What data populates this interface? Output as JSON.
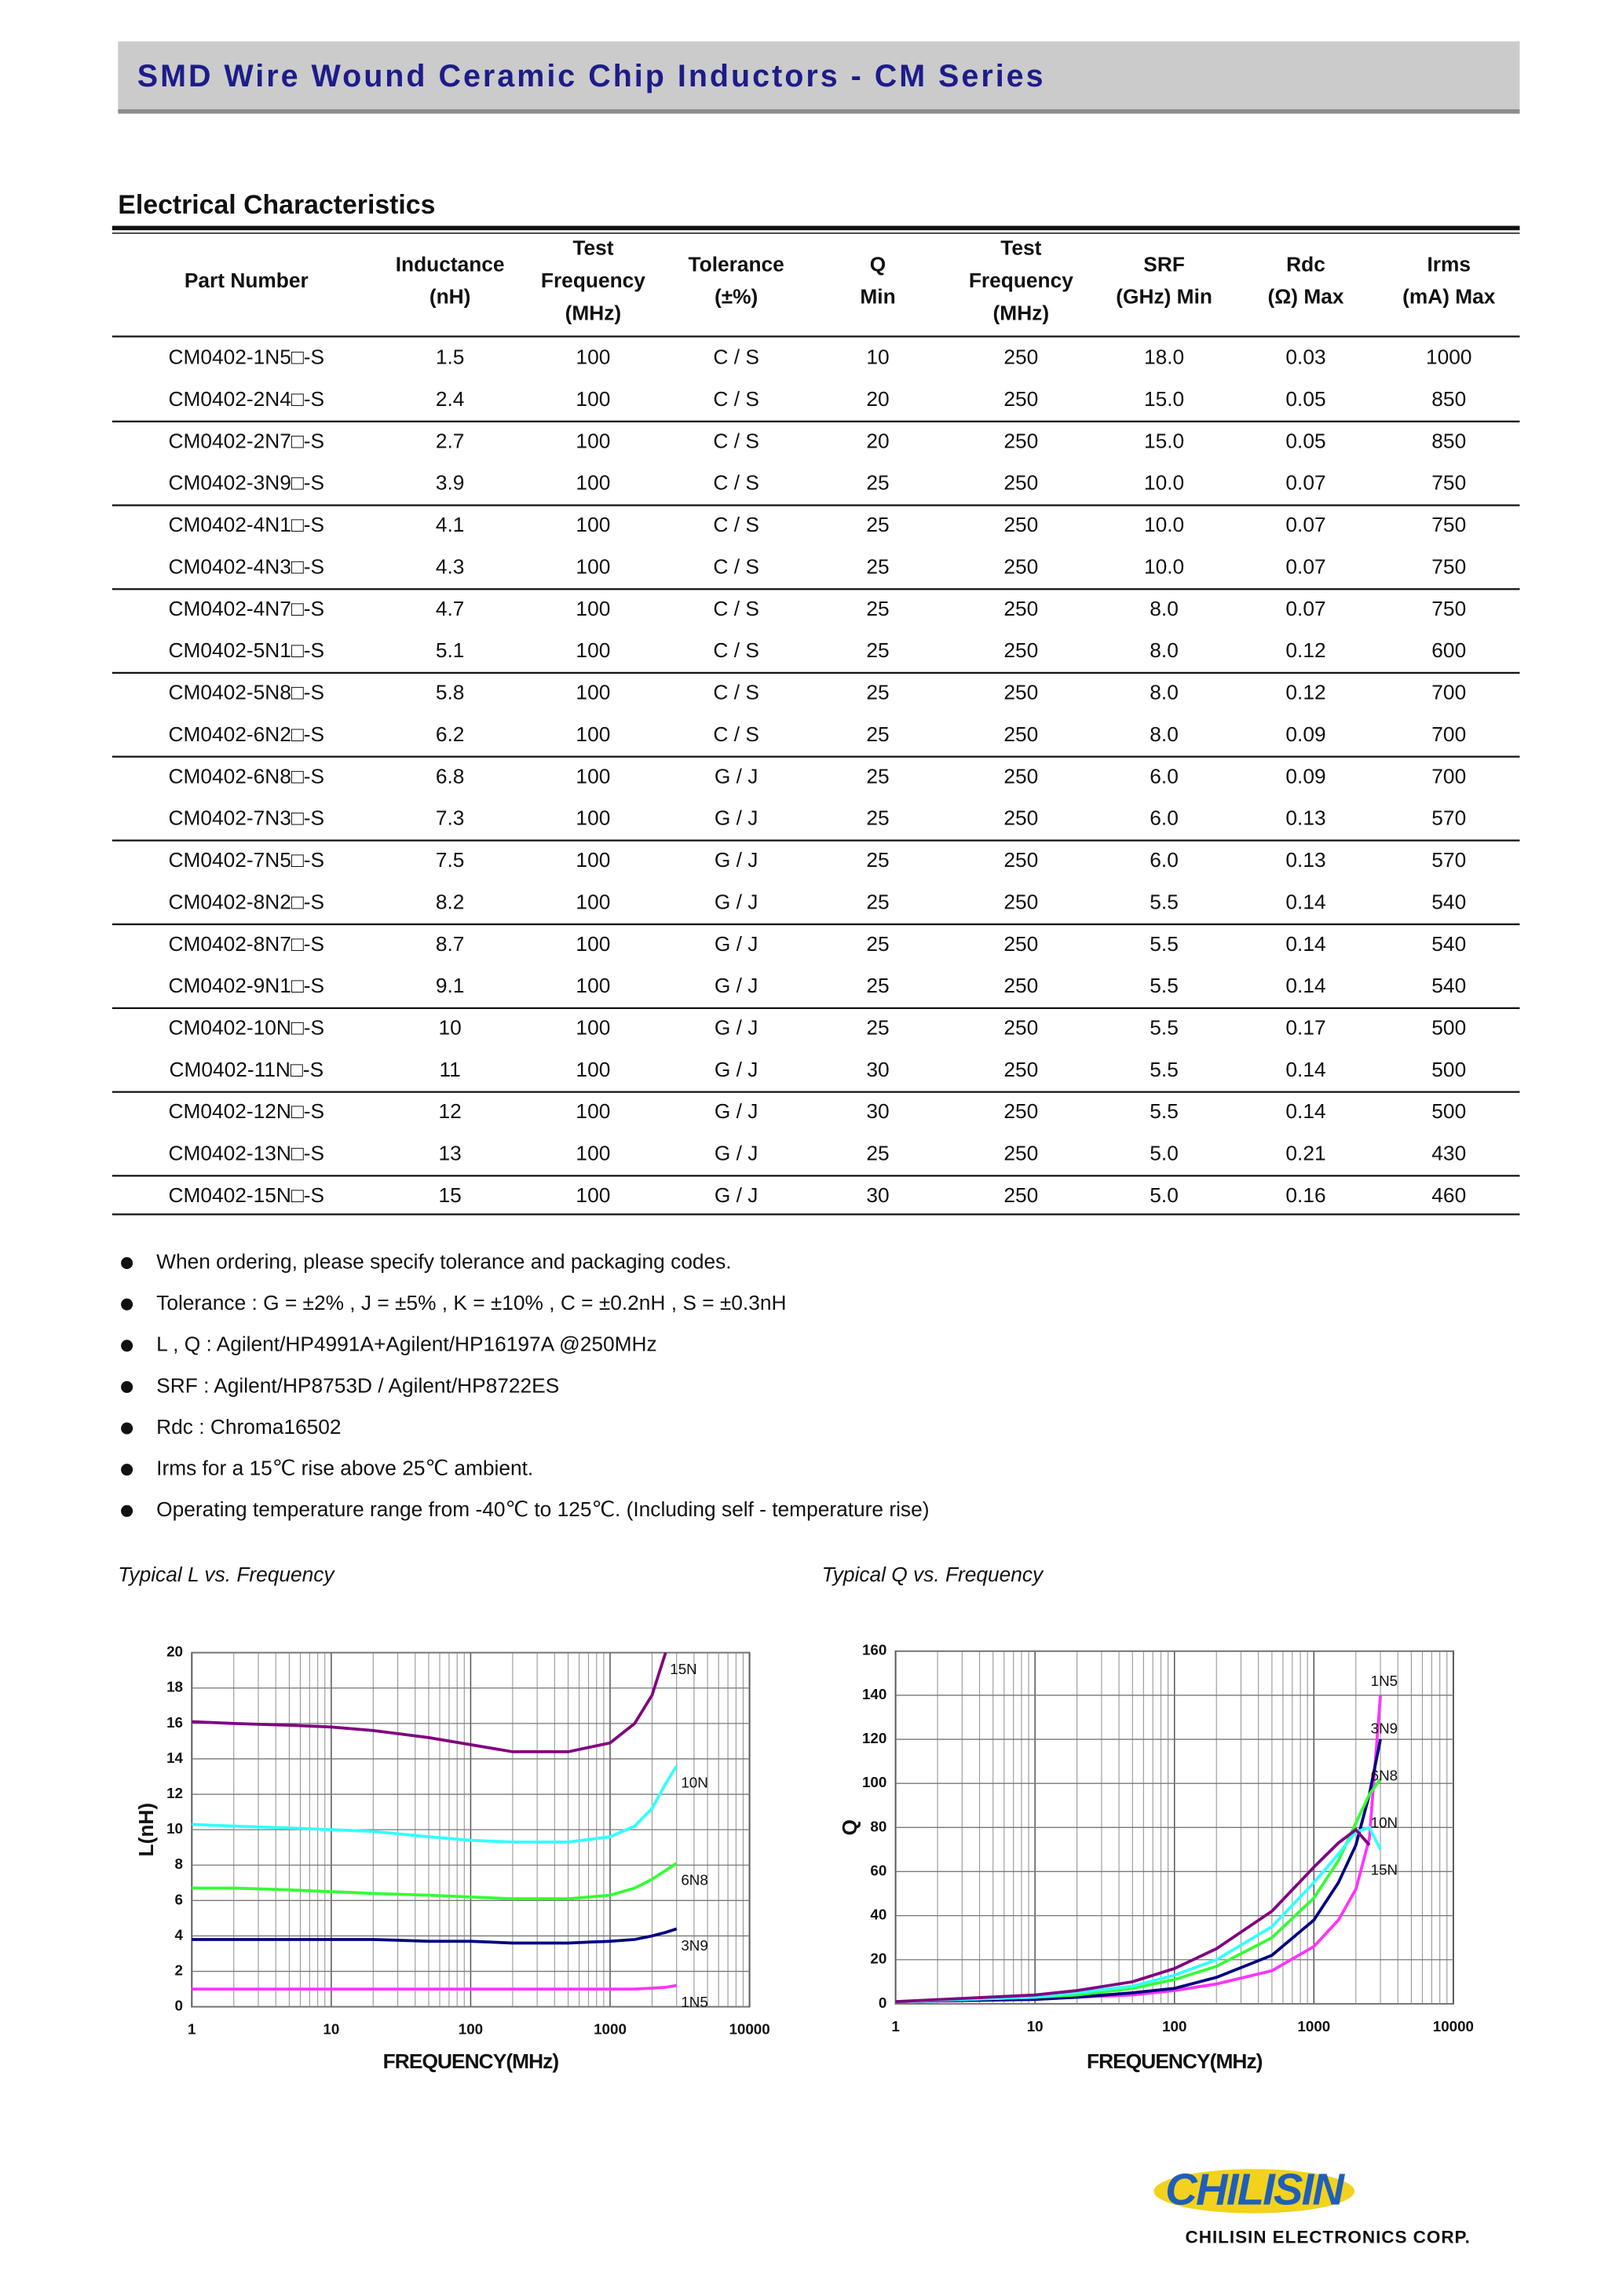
{
  "header": {
    "title": "SMD Wire Wound Ceramic Chip Inductors - CM Series"
  },
  "section_title": "Electrical Characteristics",
  "table": {
    "headers": [
      [
        "Part Number"
      ],
      [
        "Inductance",
        "(nH)"
      ],
      [
        "Test",
        "Frequency",
        "(MHz)"
      ],
      [
        "Tolerance",
        "(±%)"
      ],
      [
        "Q",
        "Min"
      ],
      [
        "Test",
        "Frequency",
        "(MHz)"
      ],
      [
        "SRF",
        "(GHz) Min"
      ],
      [
        "Rdc",
        "(Ω) Max"
      ],
      [
        "Irms",
        "(mA) Max"
      ]
    ],
    "rows": [
      [
        "CM0402-1N5□-S",
        "1.5",
        "100",
        "C / S",
        "10",
        "250",
        "18.0",
        "0.03",
        "1000"
      ],
      [
        "CM0402-2N4□-S",
        "2.4",
        "100",
        "C / S",
        "20",
        "250",
        "15.0",
        "0.05",
        "850"
      ],
      [
        "CM0402-2N7□-S",
        "2.7",
        "100",
        "C / S",
        "20",
        "250",
        "15.0",
        "0.05",
        "850"
      ],
      [
        "CM0402-3N9□-S",
        "3.9",
        "100",
        "C / S",
        "25",
        "250",
        "10.0",
        "0.07",
        "750"
      ],
      [
        "CM0402-4N1□-S",
        "4.1",
        "100",
        "C / S",
        "25",
        "250",
        "10.0",
        "0.07",
        "750"
      ],
      [
        "CM0402-4N3□-S",
        "4.3",
        "100",
        "C / S",
        "25",
        "250",
        "10.0",
        "0.07",
        "750"
      ],
      [
        "CM0402-4N7□-S",
        "4.7",
        "100",
        "C / S",
        "25",
        "250",
        "8.0",
        "0.07",
        "750"
      ],
      [
        "CM0402-5N1□-S",
        "5.1",
        "100",
        "C / S",
        "25",
        "250",
        "8.0",
        "0.12",
        "600"
      ],
      [
        "CM0402-5N8□-S",
        "5.8",
        "100",
        "C / S",
        "25",
        "250",
        "8.0",
        "0.12",
        "700"
      ],
      [
        "CM0402-6N2□-S",
        "6.2",
        "100",
        "C / S",
        "25",
        "250",
        "8.0",
        "0.09",
        "700"
      ],
      [
        "CM0402-6N8□-S",
        "6.8",
        "100",
        "G / J",
        "25",
        "250",
        "6.0",
        "0.09",
        "700"
      ],
      [
        "CM0402-7N3□-S",
        "7.3",
        "100",
        "G / J",
        "25",
        "250",
        "6.0",
        "0.13",
        "570"
      ],
      [
        "CM0402-7N5□-S",
        "7.5",
        "100",
        "G / J",
        "25",
        "250",
        "6.0",
        "0.13",
        "570"
      ],
      [
        "CM0402-8N2□-S",
        "8.2",
        "100",
        "G / J",
        "25",
        "250",
        "5.5",
        "0.14",
        "540"
      ],
      [
        "CM0402-8N7□-S",
        "8.7",
        "100",
        "G / J",
        "25",
        "250",
        "5.5",
        "0.14",
        "540"
      ],
      [
        "CM0402-9N1□-S",
        "9.1",
        "100",
        "G / J",
        "25",
        "250",
        "5.5",
        "0.14",
        "540"
      ],
      [
        "CM0402-10N□-S",
        "10",
        "100",
        "G / J",
        "25",
        "250",
        "5.5",
        "0.17",
        "500"
      ],
      [
        "CM0402-11N□-S",
        "11",
        "100",
        "G / J",
        "30",
        "250",
        "5.5",
        "0.14",
        "500"
      ],
      [
        "CM0402-12N□-S",
        "12",
        "100",
        "G / J",
        "30",
        "250",
        "5.5",
        "0.14",
        "500"
      ],
      [
        "CM0402-13N□-S",
        "13",
        "100",
        "G / J",
        "25",
        "250",
        "5.0",
        "0.21",
        "430"
      ],
      [
        "CM0402-15N□-S",
        "15",
        "100",
        "G / J",
        "30",
        "250",
        "5.0",
        "0.16",
        "460"
      ]
    ]
  },
  "notes": [
    "When ordering, please specify tolerance and packaging codes.",
    "Tolerance : G = ±2% , J = ±5% , K = ±10% , C = ±0.2nH , S = ±0.3nH",
    "L , Q : Agilent/HP4991A+Agilent/HP16197A @250MHz",
    "SRF : Agilent/HP8753D / Agilent/HP8722ES",
    "Rdc : Chroma16502",
    "Irms for a 15℃  rise above 25℃  ambient.",
    "Operating temperature range from -40℃  to 125℃. (Including self - temperature rise)"
  ],
  "chart_data": [
    {
      "type": "line",
      "title": "Typical L vs. Frequency",
      "xlabel": "FREQUENCY(MHz)",
      "ylabel": "L(nH)",
      "log_x": true,
      "grid": true,
      "x": [
        1,
        2,
        5,
        10,
        20,
        50,
        100,
        200,
        500,
        1000,
        1500,
        2000,
        2500,
        3000
      ],
      "xlim": [
        1,
        10000
      ],
      "xticks": [
        1,
        10,
        100,
        1000,
        10000
      ],
      "ylim": [
        0,
        20
      ],
      "yticks": [
        0,
        2,
        4,
        6,
        8,
        10,
        12,
        14,
        16,
        18,
        20
      ],
      "series": [
        {
          "name": "15N",
          "color": "#800080",
          "values": [
            16.1,
            16.0,
            15.9,
            15.8,
            15.6,
            15.2,
            14.8,
            14.4,
            14.4,
            14.9,
            16.0,
            17.6,
            20,
            null
          ]
        },
        {
          "name": "10N",
          "color": "#33ffff",
          "values": [
            10.3,
            10.2,
            10.1,
            10.0,
            9.9,
            9.6,
            9.4,
            9.3,
            9.3,
            9.6,
            10.2,
            11.2,
            12.6,
            13.6
          ]
        },
        {
          "name": "6N8",
          "color": "#33ff33",
          "values": [
            6.7,
            6.7,
            6.6,
            6.5,
            6.4,
            6.3,
            6.2,
            6.1,
            6.1,
            6.3,
            6.7,
            7.2,
            7.7,
            8.1
          ]
        },
        {
          "name": "3N9",
          "color": "#000080",
          "values": [
            3.8,
            3.8,
            3.8,
            3.8,
            3.8,
            3.7,
            3.7,
            3.6,
            3.6,
            3.7,
            3.8,
            4.0,
            4.2,
            4.4
          ]
        },
        {
          "name": "1N5",
          "color": "#ff33ff",
          "values": [
            1.0,
            1.0,
            1.0,
            1.0,
            1.0,
            1.0,
            1.0,
            1.0,
            1.0,
            1.0,
            1.0,
            1.05,
            1.1,
            1.2
          ]
        }
      ]
    },
    {
      "type": "line",
      "title": "Typical Q vs. Frequency",
      "xlabel": "FREQUENCY(MHz)",
      "ylabel": "Q",
      "log_x": true,
      "grid": true,
      "x": [
        1,
        10,
        20,
        50,
        100,
        200,
        500,
        1000,
        1500,
        2000,
        2500,
        3000
      ],
      "xlim": [
        1,
        10000
      ],
      "xticks": [
        1,
        10,
        100,
        1000,
        10000
      ],
      "ylim": [
        0,
        160
      ],
      "yticks": [
        0,
        20,
        40,
        60,
        80,
        100,
        120,
        140,
        160
      ],
      "series": [
        {
          "name": "1N5",
          "color": "#ff33ff",
          "values": [
            1,
            2,
            3,
            4,
            6,
            9,
            15,
            26,
            38,
            52,
            75,
            140
          ]
        },
        {
          "name": "3N9",
          "color": "#000080",
          "values": [
            1,
            2,
            3,
            5,
            7,
            12,
            22,
            38,
            55,
            72,
            95,
            120
          ]
        },
        {
          "name": "6N8",
          "color": "#33ff33",
          "values": [
            1,
            3,
            4,
            7,
            11,
            17,
            30,
            48,
            65,
            82,
            95,
            102
          ]
        },
        {
          "name": "10N",
          "color": "#33ffff",
          "values": [
            1,
            3,
            5,
            8,
            13,
            20,
            35,
            55,
            68,
            78,
            80,
            70
          ]
        },
        {
          "name": "15N",
          "color": "#800080",
          "values": [
            1,
            4,
            6,
            10,
            16,
            25,
            42,
            62,
            73,
            79,
            72,
            null
          ]
        }
      ]
    }
  ],
  "footer": {
    "logo": "CHILISIN",
    "company": "CHILISIN ELECTRONICS CORP."
  }
}
